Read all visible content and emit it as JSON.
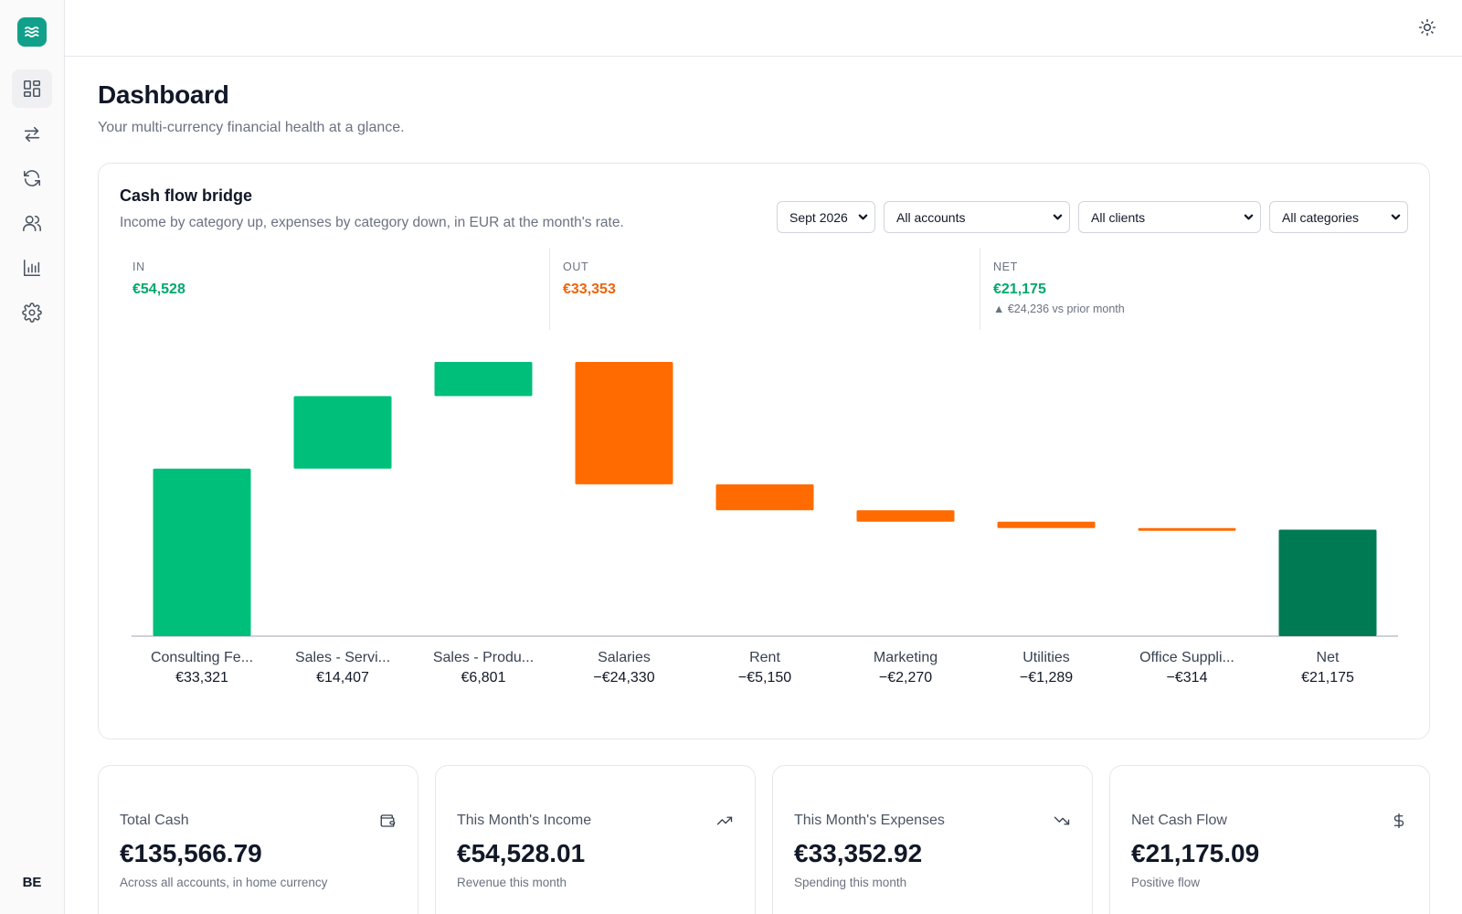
{
  "app": {
    "logo_icon": "waves-icon",
    "user_initials": "BE"
  },
  "sidebar": {
    "items": [
      {
        "name": "dashboard",
        "icon": "dashboard-grid-icon",
        "active": true
      },
      {
        "name": "transfers",
        "icon": "arrows-left-right-icon",
        "active": false
      },
      {
        "name": "recurring",
        "icon": "refresh-icon",
        "active": false
      },
      {
        "name": "clients",
        "icon": "users-icon",
        "active": false
      },
      {
        "name": "reports",
        "icon": "bar-chart-icon",
        "active": false
      },
      {
        "name": "settings",
        "icon": "gear-icon",
        "active": false
      }
    ]
  },
  "header": {
    "theme_toggle_icon": "sun-icon"
  },
  "page": {
    "title": "Dashboard",
    "subtitle": "Your multi-currency financial health at a glance."
  },
  "bridge": {
    "title": "Cash flow bridge",
    "subtitle": "Income by category up, expenses by category down, in EUR at the month's rate.",
    "filters": {
      "month": "Sept 2026",
      "accounts": "All accounts",
      "clients": "All clients",
      "categories": "All categories"
    },
    "kpis": {
      "in_label": "IN",
      "in_value": "€54,528",
      "out_label": "OUT",
      "out_value": "€33,353",
      "net_label": "NET",
      "net_value": "€21,175",
      "net_note": "▲ €24,236 vs prior month"
    }
  },
  "colors": {
    "income": "#00bf7a",
    "expense": "#ff6b00",
    "net": "#007a53",
    "accent": "#11a08a"
  },
  "chart_data": {
    "type": "bar",
    "subtype": "waterfall",
    "categories": [
      "Consulting Fe...",
      "Sales - Servi...",
      "Sales - Produ...",
      "Salaries",
      "Rent",
      "Marketing",
      "Utilities",
      "Office Suppli...",
      "Net"
    ],
    "values": [
      33321,
      14407,
      6801,
      -24330,
      -5150,
      -2270,
      -1289,
      -314,
      21175
    ],
    "value_labels": [
      "€33,321",
      "€14,407",
      "€6,801",
      "−€24,330",
      "−€5,150",
      "−€2,270",
      "−€1,289",
      "−€314",
      "€21,175"
    ],
    "kinds": [
      "income",
      "income",
      "income",
      "expense",
      "expense",
      "expense",
      "expense",
      "expense",
      "net"
    ],
    "ylim": [
      0,
      54528
    ],
    "grid": false,
    "legend": "none"
  },
  "stats": [
    {
      "label": "Total Cash",
      "value": "€135,566.79",
      "note": "Across all accounts, in home currency",
      "icon": "wallet-icon"
    },
    {
      "label": "This Month's Income",
      "value": "€54,528.01",
      "note": "Revenue this month",
      "icon": "trending-up-icon"
    },
    {
      "label": "This Month's Expenses",
      "value": "€33,352.92",
      "note": "Spending this month",
      "icon": "trending-down-icon"
    },
    {
      "label": "Net Cash Flow",
      "value": "€21,175.09",
      "note": "Positive flow",
      "icon": "dollar-icon"
    }
  ]
}
